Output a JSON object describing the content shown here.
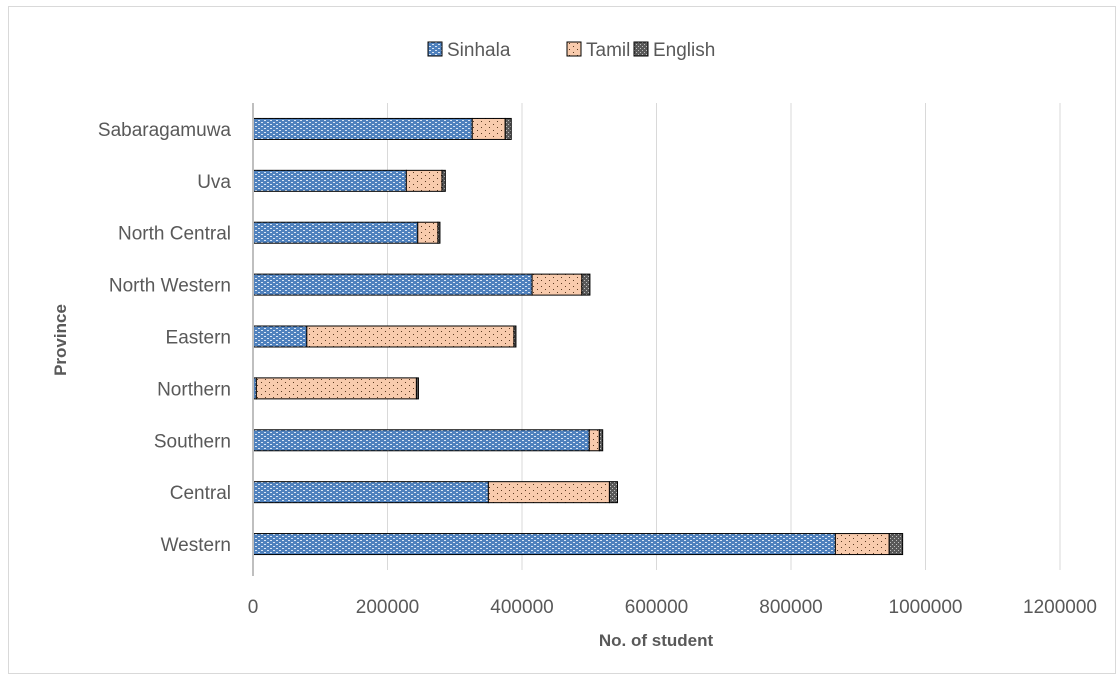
{
  "chart_data": {
    "type": "bar",
    "orientation": "horizontal",
    "stacked": true,
    "title": "",
    "xlabel": "No. of student",
    "ylabel": "Province",
    "xlim": [
      0,
      1200000
    ],
    "xticks": [
      "0",
      "200000",
      "400000",
      "600000",
      "800000",
      "1000000",
      "1200000"
    ],
    "grid": true,
    "legend_position": "top",
    "categories": [
      "Western",
      "Central",
      "Southern",
      "Northern",
      "Eastern",
      "North Western",
      "North Central",
      "Uva",
      "Sabaragamuwa"
    ],
    "series": [
      {
        "name": "Sinhala",
        "color": "#4f81bd",
        "values": [
          866000,
          350000,
          500000,
          5000,
          80000,
          415000,
          245000,
          228000,
          326000
        ]
      },
      {
        "name": "Tamil",
        "color": "#f4b183",
        "values": [
          80000,
          180000,
          15000,
          238000,
          308000,
          74000,
          30000,
          53000,
          49000
        ]
      },
      {
        "name": "English",
        "color": "#7f7f7f",
        "values": [
          20000,
          12000,
          5000,
          3000,
          3000,
          12000,
          3000,
          5000,
          9000
        ]
      }
    ]
  }
}
